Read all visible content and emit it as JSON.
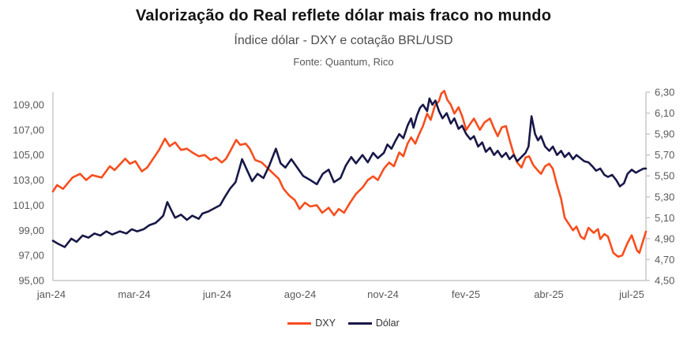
{
  "header": {
    "title": "Valorização do Real reflete dólar mais fraco no mundo",
    "subtitle": "Índice dólar - DXY e cotação BRL/USD",
    "source": "Fonte: Quantum, Rico"
  },
  "colors": {
    "dxy": "#F74E1E",
    "dolar": "#181848",
    "axis_line": "#C6C6C6",
    "tick_text": "#595959"
  },
  "chart_data": {
    "type": "line",
    "title": "Valorização do Real reflete dólar mais fraco no mundo",
    "subtitle": "Índice dólar - DXY e cotação BRL/USD",
    "grid": false,
    "legend_position": "bottom",
    "x_axis": {
      "labels": [
        "jan-24",
        "mar-24",
        "jun-24",
        "ago-24",
        "nov-24",
        "fev-25",
        "abr-25",
        "jul-25"
      ]
    },
    "y_axis_left": {
      "range": [
        95.0,
        110.0
      ],
      "tick_values": [
        109,
        107,
        105,
        103,
        101,
        99,
        97,
        95
      ],
      "tick_labels": [
        "109,00",
        "107,00",
        "105,00",
        "103,00",
        "101,00",
        "99,00",
        "97,00",
        "95,00"
      ]
    },
    "y_axis_right": {
      "range": [
        4.5,
        6.3
      ],
      "tick_values": [
        6.3,
        6.1,
        5.9,
        5.7,
        5.5,
        5.3,
        5.1,
        4.9,
        4.7,
        4.5
      ],
      "tick_labels": [
        "6,30",
        "6,10",
        "5,90",
        "5,70",
        "5,50",
        "5,30",
        "5,10",
        "4,90",
        "4,70",
        "4,50"
      ]
    },
    "series": [
      {
        "name": "DXY",
        "axis": "left",
        "color_key": "dxy",
        "points": [
          [
            0.0,
            102.1
          ],
          [
            0.007,
            102.6
          ],
          [
            0.017,
            102.3
          ],
          [
            0.033,
            103.2
          ],
          [
            0.046,
            103.5
          ],
          [
            0.056,
            103.0
          ],
          [
            0.066,
            103.4
          ],
          [
            0.082,
            103.2
          ],
          [
            0.096,
            104.1
          ],
          [
            0.104,
            103.8
          ],
          [
            0.122,
            104.7
          ],
          [
            0.13,
            104.3
          ],
          [
            0.139,
            104.5
          ],
          [
            0.15,
            103.7
          ],
          [
            0.159,
            104.0
          ],
          [
            0.179,
            105.4
          ],
          [
            0.189,
            106.3
          ],
          [
            0.197,
            105.7
          ],
          [
            0.206,
            106.0
          ],
          [
            0.216,
            105.4
          ],
          [
            0.226,
            105.5
          ],
          [
            0.235,
            105.2
          ],
          [
            0.246,
            104.9
          ],
          [
            0.256,
            105.0
          ],
          [
            0.266,
            104.6
          ],
          [
            0.275,
            104.8
          ],
          [
            0.285,
            104.4
          ],
          [
            0.292,
            104.7
          ],
          [
            0.299,
            105.3
          ],
          [
            0.309,
            106.2
          ],
          [
            0.316,
            105.8
          ],
          [
            0.325,
            105.9
          ],
          [
            0.332,
            105.5
          ],
          [
            0.341,
            104.6
          ],
          [
            0.352,
            104.4
          ],
          [
            0.361,
            104.0
          ],
          [
            0.372,
            103.5
          ],
          [
            0.381,
            103.1
          ],
          [
            0.389,
            102.3
          ],
          [
            0.398,
            101.8
          ],
          [
            0.408,
            101.4
          ],
          [
            0.416,
            100.7
          ],
          [
            0.425,
            101.2
          ],
          [
            0.434,
            100.9
          ],
          [
            0.445,
            101.0
          ],
          [
            0.454,
            100.4
          ],
          [
            0.465,
            100.8
          ],
          [
            0.474,
            100.2
          ],
          [
            0.482,
            100.7
          ],
          [
            0.491,
            100.4
          ],
          [
            0.501,
            101.2
          ],
          [
            0.511,
            101.9
          ],
          [
            0.522,
            102.4
          ],
          [
            0.531,
            103.0
          ],
          [
            0.54,
            103.3
          ],
          [
            0.548,
            103.0
          ],
          [
            0.558,
            103.9
          ],
          [
            0.567,
            104.4
          ],
          [
            0.575,
            104.1
          ],
          [
            0.584,
            105.2
          ],
          [
            0.591,
            104.9
          ],
          [
            0.598,
            105.9
          ],
          [
            0.604,
            106.4
          ],
          [
            0.611,
            105.9
          ],
          [
            0.617,
            106.6
          ],
          [
            0.624,
            107.3
          ],
          [
            0.631,
            108.3
          ],
          [
            0.637,
            107.8
          ],
          [
            0.644,
            108.9
          ],
          [
            0.651,
            109.3
          ],
          [
            0.655,
            109.9
          ],
          [
            0.66,
            110.1
          ],
          [
            0.665,
            109.4
          ],
          [
            0.671,
            109.0
          ],
          [
            0.677,
            108.3
          ],
          [
            0.684,
            108.8
          ],
          [
            0.69,
            108.1
          ],
          [
            0.697,
            107.0
          ],
          [
            0.704,
            107.5
          ],
          [
            0.71,
            107.9
          ],
          [
            0.72,
            107.0
          ],
          [
            0.728,
            107.6
          ],
          [
            0.737,
            107.9
          ],
          [
            0.744,
            107.1
          ],
          [
            0.75,
            106.5
          ],
          [
            0.757,
            107.2
          ],
          [
            0.764,
            107.3
          ],
          [
            0.77,
            106.2
          ],
          [
            0.777,
            105.1
          ],
          [
            0.783,
            104.4
          ],
          [
            0.79,
            104.0
          ],
          [
            0.797,
            104.8
          ],
          [
            0.803,
            104.9
          ],
          [
            0.81,
            104.2
          ],
          [
            0.817,
            103.8
          ],
          [
            0.823,
            103.5
          ],
          [
            0.83,
            104.1
          ],
          [
            0.837,
            104.3
          ],
          [
            0.843,
            103.9
          ],
          [
            0.85,
            102.6
          ],
          [
            0.857,
            101.5
          ],
          [
            0.863,
            100.0
          ],
          [
            0.87,
            99.5
          ],
          [
            0.877,
            99.0
          ],
          [
            0.883,
            99.3
          ],
          [
            0.89,
            98.5
          ],
          [
            0.896,
            98.3
          ],
          [
            0.903,
            99.2
          ],
          [
            0.912,
            98.8
          ],
          [
            0.919,
            99.1
          ],
          [
            0.923,
            98.3
          ],
          [
            0.93,
            98.7
          ],
          [
            0.936,
            98.5
          ],
          [
            0.945,
            97.2
          ],
          [
            0.953,
            96.9
          ],
          [
            0.96,
            97.0
          ],
          [
            0.969,
            98.0
          ],
          [
            0.976,
            98.6
          ],
          [
            0.985,
            97.4
          ],
          [
            0.989,
            97.2
          ],
          [
            1.0,
            98.9
          ]
        ]
      },
      {
        "name": "Dólar",
        "axis": "right",
        "color_key": "dolar",
        "points": [
          [
            0.0,
            4.88
          ],
          [
            0.009,
            4.85
          ],
          [
            0.02,
            4.82
          ],
          [
            0.031,
            4.9
          ],
          [
            0.04,
            4.87
          ],
          [
            0.05,
            4.93
          ],
          [
            0.06,
            4.91
          ],
          [
            0.07,
            4.95
          ],
          [
            0.08,
            4.93
          ],
          [
            0.09,
            4.97
          ],
          [
            0.1,
            4.94
          ],
          [
            0.113,
            4.97
          ],
          [
            0.124,
            4.95
          ],
          [
            0.133,
            4.99
          ],
          [
            0.142,
            4.97
          ],
          [
            0.153,
            4.99
          ],
          [
            0.163,
            5.03
          ],
          [
            0.173,
            5.05
          ],
          [
            0.179,
            5.08
          ],
          [
            0.186,
            5.12
          ],
          [
            0.193,
            5.25
          ],
          [
            0.199,
            5.18
          ],
          [
            0.206,
            5.1
          ],
          [
            0.216,
            5.13
          ],
          [
            0.226,
            5.08
          ],
          [
            0.235,
            5.12
          ],
          [
            0.246,
            5.09
          ],
          [
            0.252,
            5.14
          ],
          [
            0.262,
            5.16
          ],
          [
            0.272,
            5.19
          ],
          [
            0.282,
            5.22
          ],
          [
            0.29,
            5.3
          ],
          [
            0.299,
            5.38
          ],
          [
            0.308,
            5.44
          ],
          [
            0.319,
            5.66
          ],
          [
            0.327,
            5.56
          ],
          [
            0.336,
            5.45
          ],
          [
            0.345,
            5.52
          ],
          [
            0.355,
            5.48
          ],
          [
            0.365,
            5.6
          ],
          [
            0.376,
            5.76
          ],
          [
            0.384,
            5.62
          ],
          [
            0.392,
            5.58
          ],
          [
            0.402,
            5.66
          ],
          [
            0.412,
            5.58
          ],
          [
            0.422,
            5.5
          ],
          [
            0.434,
            5.46
          ],
          [
            0.445,
            5.42
          ],
          [
            0.455,
            5.52
          ],
          [
            0.465,
            5.56
          ],
          [
            0.474,
            5.44
          ],
          [
            0.485,
            5.48
          ],
          [
            0.494,
            5.6
          ],
          [
            0.503,
            5.68
          ],
          [
            0.511,
            5.62
          ],
          [
            0.522,
            5.7
          ],
          [
            0.531,
            5.63
          ],
          [
            0.54,
            5.72
          ],
          [
            0.548,
            5.67
          ],
          [
            0.558,
            5.72
          ],
          [
            0.564,
            5.8
          ],
          [
            0.571,
            5.76
          ],
          [
            0.578,
            5.84
          ],
          [
            0.584,
            5.9
          ],
          [
            0.591,
            5.86
          ],
          [
            0.598,
            5.98
          ],
          [
            0.604,
            6.05
          ],
          [
            0.608,
            5.96
          ],
          [
            0.614,
            6.08
          ],
          [
            0.619,
            6.15
          ],
          [
            0.624,
            6.18
          ],
          [
            0.631,
            6.12
          ],
          [
            0.635,
            6.24
          ],
          [
            0.64,
            6.18
          ],
          [
            0.645,
            6.22
          ],
          [
            0.651,
            6.12
          ],
          [
            0.657,
            6.05
          ],
          [
            0.664,
            6.1
          ],
          [
            0.671,
            6.0
          ],
          [
            0.677,
            6.05
          ],
          [
            0.684,
            5.95
          ],
          [
            0.69,
            5.98
          ],
          [
            0.697,
            5.9
          ],
          [
            0.704,
            5.85
          ],
          [
            0.71,
            5.88
          ],
          [
            0.717,
            5.78
          ],
          [
            0.724,
            5.82
          ],
          [
            0.73,
            5.73
          ],
          [
            0.737,
            5.77
          ],
          [
            0.744,
            5.7
          ],
          [
            0.75,
            5.74
          ],
          [
            0.757,
            5.68
          ],
          [
            0.764,
            5.72
          ],
          [
            0.77,
            5.66
          ],
          [
            0.777,
            5.7
          ],
          [
            0.783,
            5.64
          ],
          [
            0.79,
            5.68
          ],
          [
            0.797,
            5.72
          ],
          [
            0.802,
            5.78
          ],
          [
            0.807,
            6.07
          ],
          [
            0.813,
            5.9
          ],
          [
            0.818,
            5.84
          ],
          [
            0.823,
            5.88
          ],
          [
            0.83,
            5.78
          ],
          [
            0.837,
            5.74
          ],
          [
            0.843,
            5.78
          ],
          [
            0.85,
            5.7
          ],
          [
            0.857,
            5.74
          ],
          [
            0.863,
            5.68
          ],
          [
            0.87,
            5.72
          ],
          [
            0.877,
            5.66
          ],
          [
            0.883,
            5.7
          ],
          [
            0.896,
            5.64
          ],
          [
            0.903,
            5.63
          ],
          [
            0.91,
            5.59
          ],
          [
            0.916,
            5.55
          ],
          [
            0.923,
            5.57
          ],
          [
            0.93,
            5.51
          ],
          [
            0.936,
            5.49
          ],
          [
            0.943,
            5.51
          ],
          [
            0.95,
            5.46
          ],
          [
            0.956,
            5.4
          ],
          [
            0.963,
            5.43
          ],
          [
            0.969,
            5.52
          ],
          [
            0.976,
            5.56
          ],
          [
            0.983,
            5.53
          ],
          [
            0.989,
            5.55
          ],
          [
            0.996,
            5.57
          ],
          [
            1.0,
            5.57
          ]
        ]
      }
    ]
  }
}
